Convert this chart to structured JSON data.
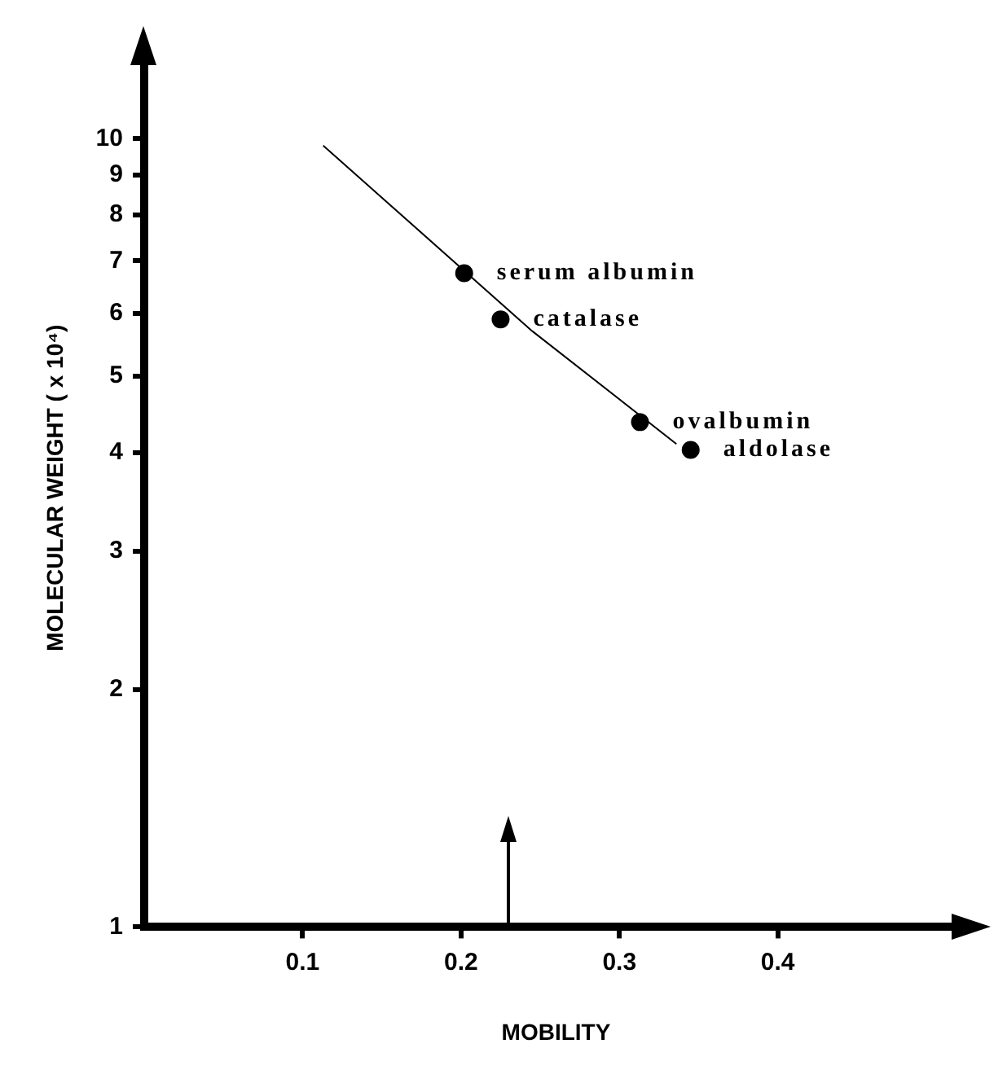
{
  "chart_data": {
    "type": "scatter",
    "xlabel": "MOBILITY",
    "ylabel": "MOLECULAR WEIGHT ( x 10⁴)",
    "log": "y",
    "grid": false,
    "legend": false,
    "marker": "circle",
    "xlim": [
      0,
      0.52
    ],
    "xticks": [
      0.1,
      0.2,
      0.3,
      0.4
    ],
    "ylim": [
      1,
      13
    ],
    "yticks": [
      1,
      2,
      3,
      4,
      5,
      6,
      7,
      8,
      9,
      10
    ],
    "series": [
      {
        "color": "#000000",
        "x": [
          0.202,
          0.225,
          0.313,
          0.345
        ],
        "values": [
          6.75,
          5.9,
          4.37,
          4.03
        ]
      },
      {
        "type": "line",
        "color": "#000000",
        "marker": "none",
        "x": [
          0.113,
          0.245,
          0.336
        ],
        "values": [
          9.8,
          5.7,
          4.1
        ]
      }
    ],
    "annotations": [
      {
        "text": "serum albumin",
        "x": 0.202,
        "y": 6.75
      },
      {
        "text": "catalase",
        "x": 0.225,
        "y": 5.9
      },
      {
        "text": "ovalbumin",
        "x": 0.313,
        "y": 4.37
      },
      {
        "text": "aldolase",
        "x": 0.345,
        "y": 4.03
      }
    ],
    "ref_lines": [
      {
        "axis": "x",
        "value": 0.23
      }
    ]
  }
}
